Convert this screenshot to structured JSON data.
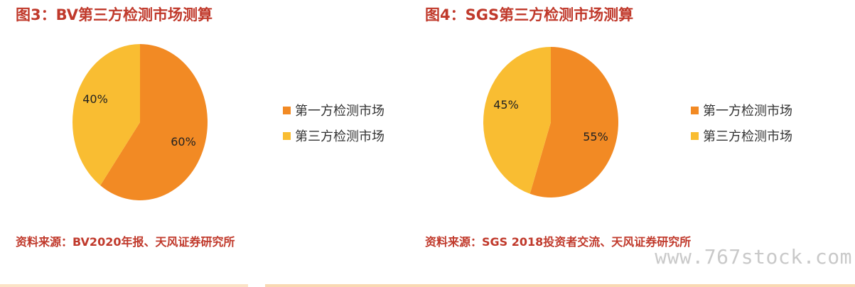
{
  "colors": {
    "first_party": "#F28A24",
    "third_party": "#F9BD32",
    "title_red": "#C0392B"
  },
  "chart_data": [
    {
      "type": "pie",
      "title": "图3：BV第三方检测市场测算",
      "categories": [
        "第一方检测市场",
        "第三方检测市场"
      ],
      "values": [
        60,
        40
      ],
      "labels": [
        "60%",
        "40%"
      ],
      "legend_position": "right",
      "source": "资料来源：BV2020年报、天风证券研究所"
    },
    {
      "type": "pie",
      "title": "图4：SGS第三方检测市场测算",
      "categories": [
        "第一方检测市场",
        "第三方检测市场"
      ],
      "values": [
        55,
        45
      ],
      "labels": [
        "55%",
        "45%"
      ],
      "legend_position": "right",
      "source": "资料来源：SGS 2018投资者交流、天风证券研究所"
    }
  ],
  "watermark": "www.767stock.com"
}
